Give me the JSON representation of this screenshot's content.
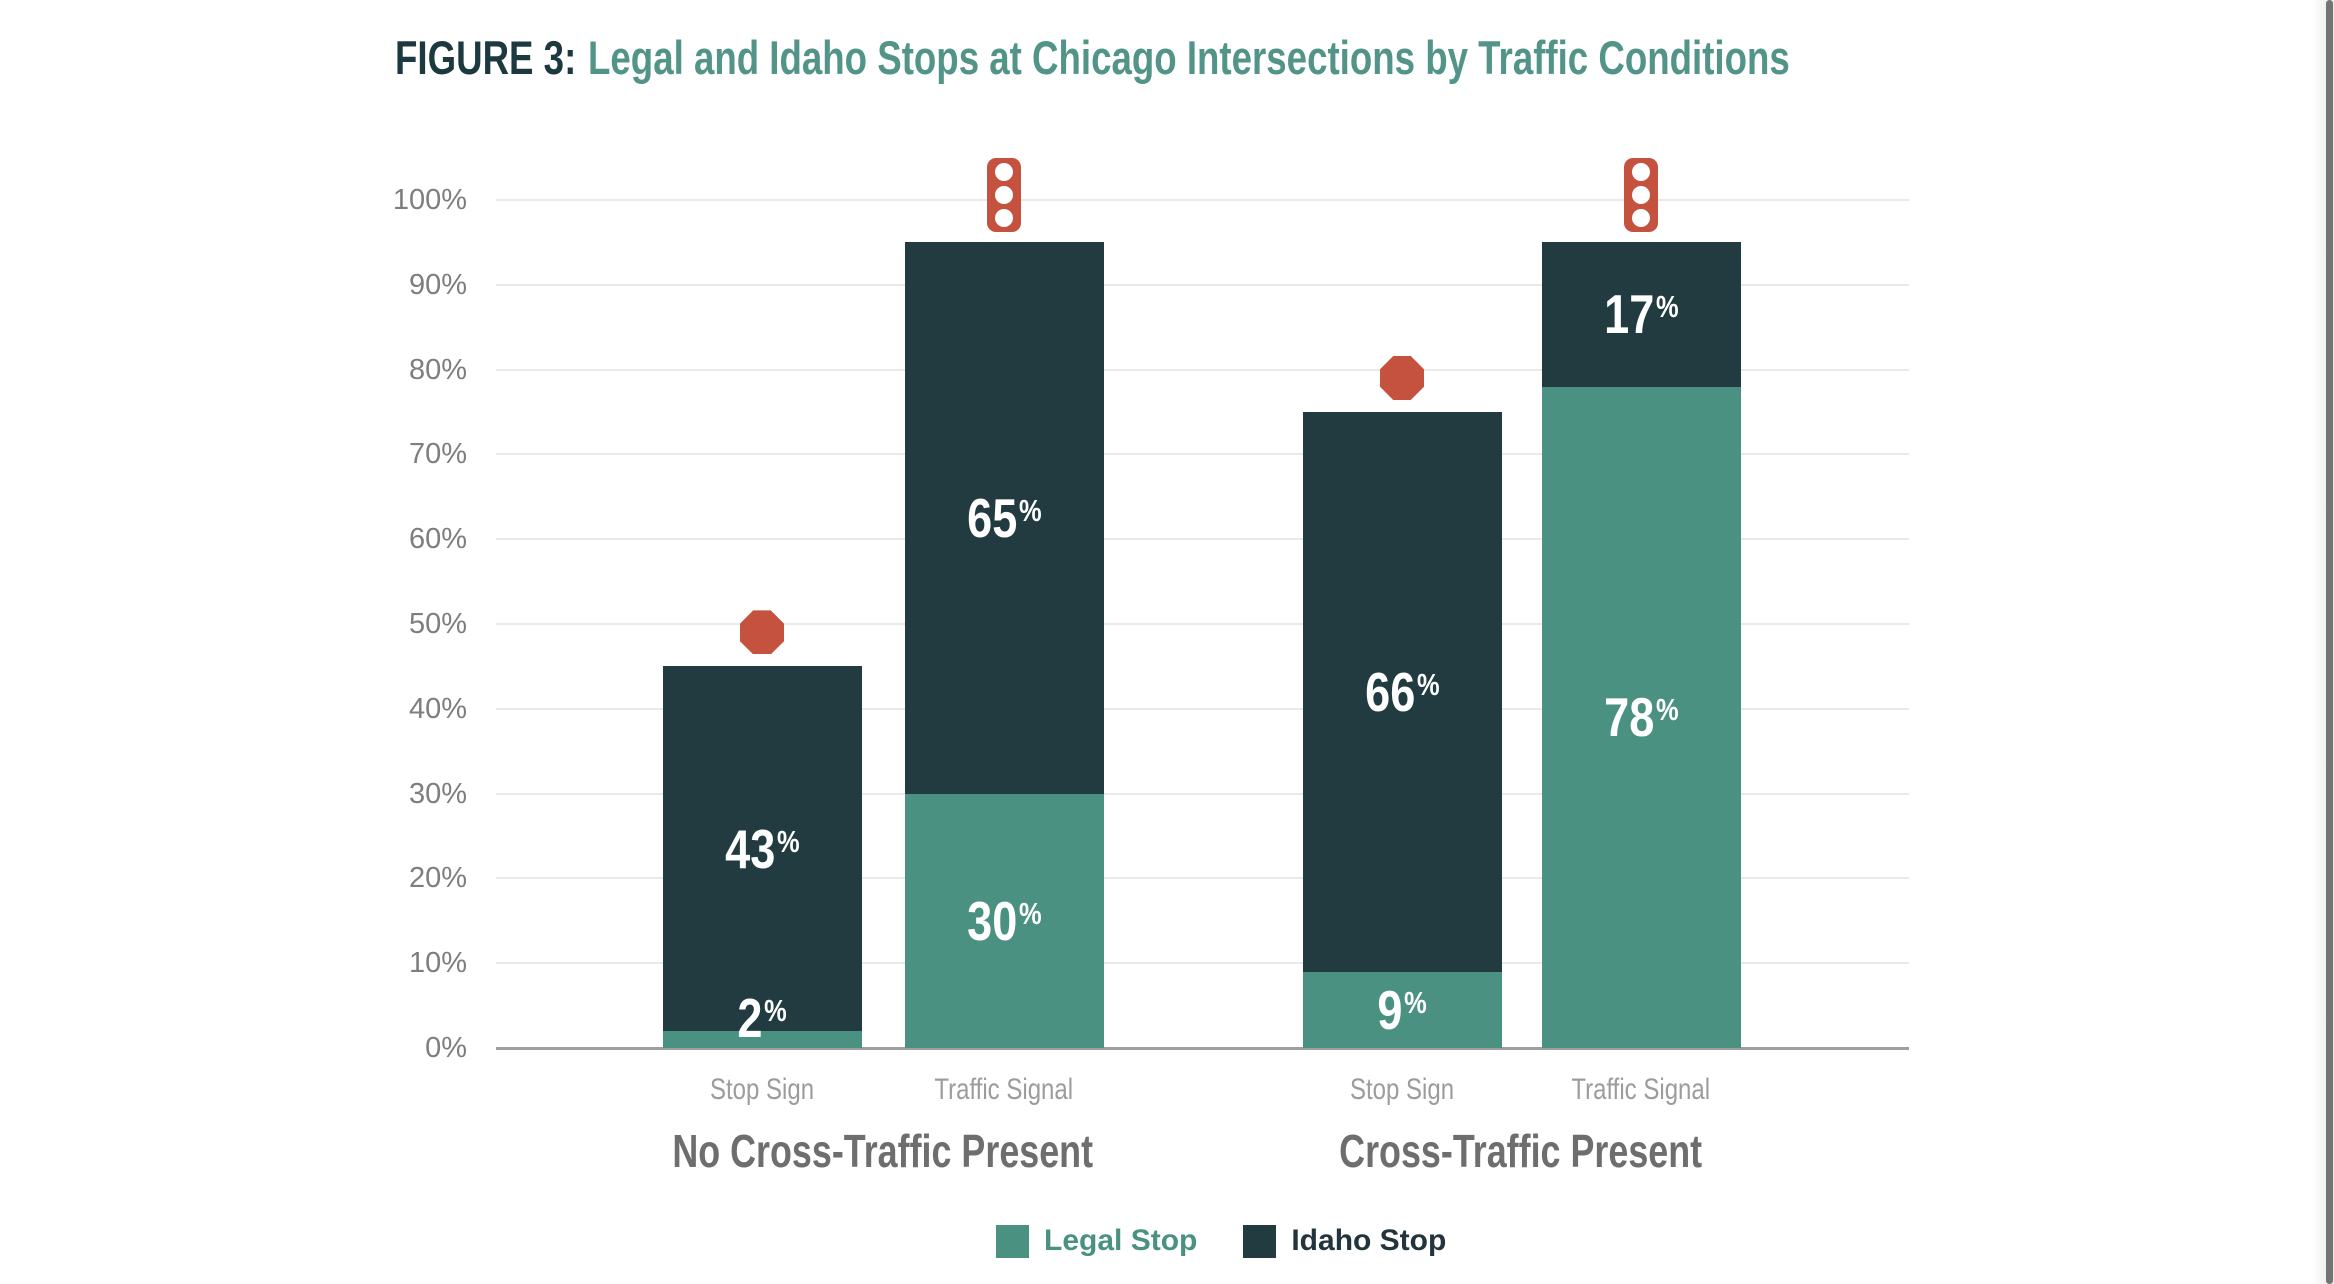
{
  "title": {
    "prefix": "FIGURE 3:",
    "text": "Legal and Idaho Stops at Chicago Intersections by Traffic Conditions"
  },
  "colors": {
    "legal": "#4A9182",
    "idaho": "#213B41",
    "icon_red": "#C5523E",
    "title_prefix": "#1C3940",
    "title_accent": "#539488",
    "grid": "#E9E9E9",
    "axis_line": "#9E9E9E",
    "tick_label": "#7E7E7E",
    "category_label": "#9C9C9C",
    "group_label": "#6E6E6E",
    "value_label": "#FFFFFF"
  },
  "y_axis": {
    "ticks": [
      {
        "label": "0%",
        "value": 0
      },
      {
        "label": "10%",
        "value": 10
      },
      {
        "label": "20%",
        "value": 20
      },
      {
        "label": "30%",
        "value": 30
      },
      {
        "label": "40%",
        "value": 40
      },
      {
        "label": "50%",
        "value": 50
      },
      {
        "label": "60%",
        "value": 60
      },
      {
        "label": "70%",
        "value": 70
      },
      {
        "label": "80%",
        "value": 80
      },
      {
        "label": "90%",
        "value": 90
      },
      {
        "label": "100%",
        "value": 100
      }
    ]
  },
  "legend": [
    {
      "label": "Legal Stop",
      "swatch_color": "#4A9182",
      "label_color": "#4A9182"
    },
    {
      "label": "Idaho Stop",
      "swatch_color": "#213B41",
      "label_color": "#22343C"
    }
  ],
  "chart_data": {
    "type": "bar",
    "stacked": true,
    "title": "FIGURE 3: Legal and Idaho Stops at Chicago Intersections by Traffic Conditions",
    "percent_sign": "%",
    "ylabel": "",
    "ylim": [
      0,
      100
    ],
    "grid": true,
    "legend_position": "bottom",
    "categories": [
      "Stop Sign",
      "Traffic Signal",
      "Stop Sign",
      "Traffic Signal"
    ],
    "series": [
      {
        "name": "Legal Stop",
        "values": [
          2,
          30,
          9,
          78
        ]
      },
      {
        "name": "Idaho Stop",
        "values": [
          43,
          65,
          66,
          17
        ]
      }
    ],
    "groups": [
      {
        "label": "No Cross-Traffic Present",
        "bars": [
          {
            "category": "Stop Sign",
            "icon": "stop-sign-icon",
            "legal": 2,
            "idaho": 43
          },
          {
            "category": "Traffic Signal",
            "icon": "traffic-light-icon",
            "legal": 30,
            "idaho": 65
          }
        ]
      },
      {
        "label": "Cross-Traffic Present",
        "bars": [
          {
            "category": "Stop Sign",
            "icon": "stop-sign-icon",
            "legal": 9,
            "idaho": 66
          },
          {
            "category": "Traffic Signal",
            "icon": "traffic-light-icon",
            "legal": 78,
            "idaho": 17
          }
        ]
      }
    ]
  }
}
